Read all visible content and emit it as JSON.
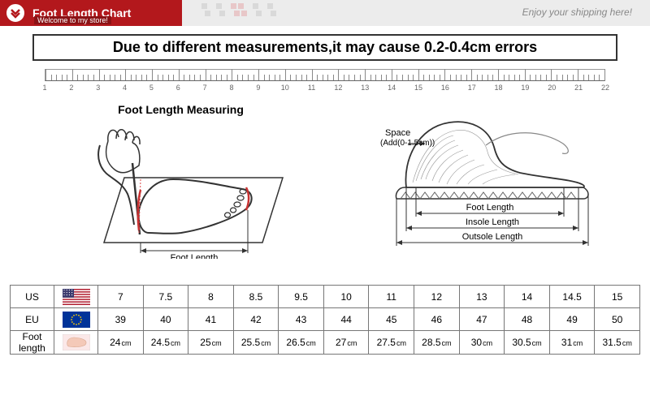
{
  "header": {
    "title": "Foot Length Chart",
    "subtitle": "Welcome to my store!",
    "enjoy": "Enjoy your shipping here!",
    "squares": [
      "#d9d9d9",
      "#ececec",
      "#d9d9d9",
      "#ececec",
      "#e8c7c8",
      "#e8c7c8",
      "#ececec",
      "#d9d9d9",
      "#ececec",
      "#d9d9d9"
    ],
    "brand_red": "#b3181c"
  },
  "warning": "Due to different measurements,it may cause 0.2-0.4cm errors",
  "ruler": {
    "range": [
      1,
      22
    ],
    "major_tick_color": "#888888",
    "label_fontsize": 9
  },
  "diagram_left": {
    "title": "Foot Length Measuring",
    "foot_length_label": "Foot Length"
  },
  "diagram_right": {
    "space_label": "Space",
    "space_add": "(Add(0-1.5cm))",
    "foot_length": "Foot Length",
    "insole_length": "Insole Length",
    "outsole_length": "Outsole Length"
  },
  "table": {
    "header_bg": "#f5cfd3",
    "border_color": "#777777",
    "rows": [
      {
        "label": "US",
        "flag": "us",
        "values": [
          "7",
          "7.5",
          "8",
          "8.5",
          "9.5",
          "10",
          "11",
          "12",
          "13",
          "14",
          "14.5",
          "15"
        ]
      },
      {
        "label": "EU",
        "flag": "eu",
        "values": [
          "39",
          "40",
          "41",
          "42",
          "43",
          "44",
          "45",
          "46",
          "47",
          "48",
          "49",
          "50"
        ]
      },
      {
        "label": "Foot length",
        "flag": "foot",
        "values": [
          "24",
          "24.5",
          "25",
          "25.5",
          "26.5",
          "27",
          "27.5",
          "28.5",
          "30",
          "30.5",
          "31",
          "31.5"
        ],
        "unit": "cm"
      }
    ]
  }
}
